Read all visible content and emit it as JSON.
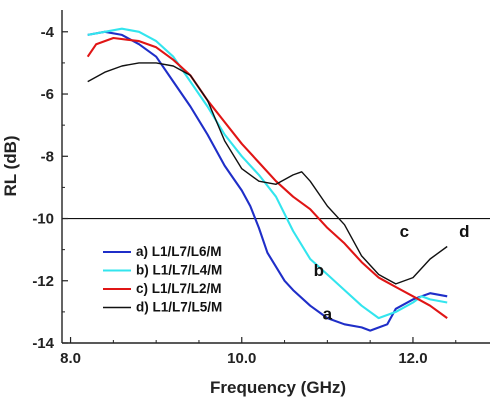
{
  "chart_data": {
    "type": "line",
    "xlabel": "Frequency (GHz)",
    "ylabel": "RL (dB)",
    "xlim": [
      7.9,
      12.9
    ],
    "ylim": [
      -14,
      -3.3
    ],
    "xticks": [
      8.0,
      10.0,
      12.0
    ],
    "xtick_labels": [
      "8.0",
      "10.0",
      "12.0"
    ],
    "yticks": [
      -4,
      -6,
      -8,
      -10,
      -12,
      -14
    ],
    "ytick_labels": [
      "-4",
      "-6",
      "-8",
      "-10",
      "-12",
      "-14"
    ],
    "reference_line": {
      "y": -10
    },
    "legend_position": "bottom-left",
    "series": [
      {
        "name": "a) L1/L7/L6/M",
        "color": "#1f2ec8",
        "annotation": "a",
        "x": [
          8.2,
          8.4,
          8.6,
          8.8,
          9.0,
          9.2,
          9.4,
          9.6,
          9.8,
          9.9,
          10.0,
          10.1,
          10.2,
          10.3,
          10.5,
          10.6,
          10.8,
          11.0,
          11.2,
          11.4,
          11.5,
          11.7,
          11.8,
          12.0,
          12.1,
          12.2,
          12.4
        ],
        "y": [
          -4.1,
          -4.0,
          -4.1,
          -4.4,
          -4.8,
          -5.6,
          -6.4,
          -7.3,
          -8.3,
          -8.7,
          -9.1,
          -9.6,
          -10.3,
          -11.1,
          -12.0,
          -12.3,
          -12.8,
          -13.2,
          -13.4,
          -13.5,
          -13.6,
          -13.4,
          -12.9,
          -12.6,
          -12.5,
          -12.4,
          -12.5
        ]
      },
      {
        "name": "b) L1/L7/L4/M",
        "color": "#33e5ee",
        "annotation": "b",
        "x": [
          8.2,
          8.4,
          8.6,
          8.8,
          9.0,
          9.2,
          9.4,
          9.6,
          9.8,
          10.0,
          10.2,
          10.4,
          10.6,
          10.8,
          11.0,
          11.2,
          11.4,
          11.6,
          11.8,
          12.0,
          12.1,
          12.2,
          12.4
        ],
        "y": [
          -4.1,
          -4.0,
          -3.9,
          -4.0,
          -4.3,
          -4.8,
          -5.6,
          -6.4,
          -7.3,
          -8.0,
          -8.6,
          -9.3,
          -10.4,
          -11.3,
          -11.8,
          -12.3,
          -12.8,
          -13.2,
          -13.0,
          -12.7,
          -12.5,
          -12.6,
          -12.7
        ]
      },
      {
        "name": "c) L1/L7/L2/M",
        "color": "#e01515",
        "annotation": "c",
        "x": [
          8.2,
          8.3,
          8.5,
          8.8,
          9.0,
          9.2,
          9.4,
          9.6,
          9.8,
          10.0,
          10.2,
          10.4,
          10.6,
          10.8,
          11.0,
          11.2,
          11.4,
          11.6,
          11.8,
          12.0,
          12.2,
          12.4
        ],
        "y": [
          -4.8,
          -4.4,
          -4.2,
          -4.3,
          -4.5,
          -4.9,
          -5.4,
          -6.2,
          -6.9,
          -7.6,
          -8.2,
          -8.8,
          -9.3,
          -9.7,
          -10.3,
          -10.8,
          -11.4,
          -11.9,
          -12.2,
          -12.5,
          -12.8,
          -13.2
        ]
      },
      {
        "name": "d) L1/L7/L5/M",
        "color": "#111111",
        "annotation": "d",
        "x": [
          8.2,
          8.4,
          8.6,
          8.8,
          9.0,
          9.2,
          9.4,
          9.6,
          9.8,
          10.0,
          10.2,
          10.4,
          10.6,
          10.7,
          10.8,
          11.0,
          11.2,
          11.4,
          11.6,
          11.8,
          12.0,
          12.2,
          12.4
        ],
        "y": [
          -5.6,
          -5.3,
          -5.1,
          -5.0,
          -5.0,
          -5.1,
          -5.4,
          -6.2,
          -7.5,
          -8.4,
          -8.8,
          -8.9,
          -8.6,
          -8.5,
          -8.8,
          -9.6,
          -10.2,
          -11.2,
          -11.8,
          -12.1,
          -11.9,
          -11.3,
          -10.9
        ]
      }
    ],
    "annotations": [
      {
        "text": "a",
        "x": 11.0,
        "y": -13.25
      },
      {
        "text": "b",
        "x": 10.9,
        "y": -11.85
      },
      {
        "text": "c",
        "x": 11.9,
        "y": -10.6
      },
      {
        "text": "d",
        "x": 12.6,
        "y": -10.6
      }
    ]
  }
}
